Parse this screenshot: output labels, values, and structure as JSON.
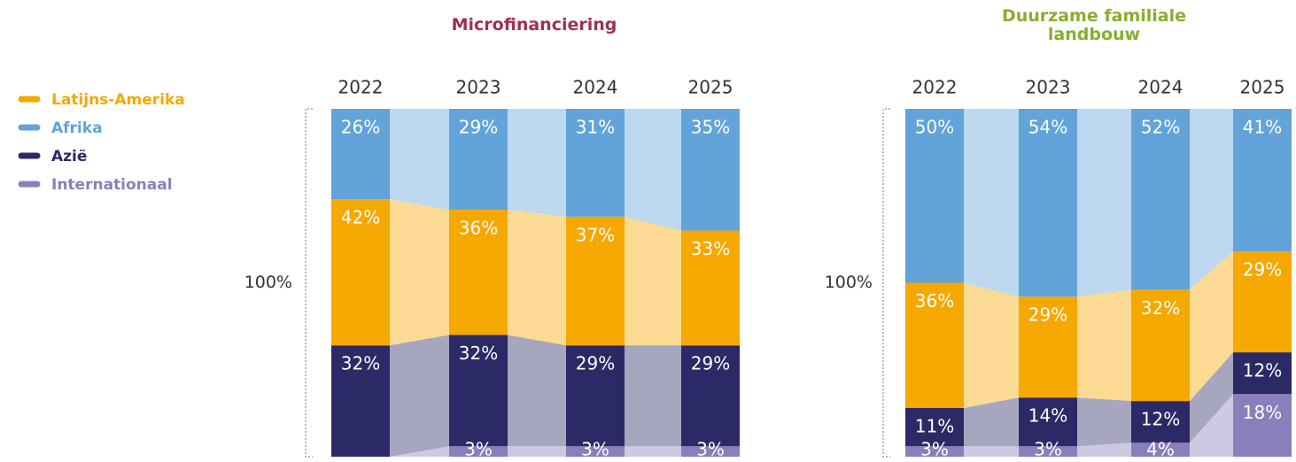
{
  "chart_data": [
    {
      "type": "stacked-bar",
      "title": "Microfinanciering",
      "title_color": "#a0304f",
      "axis_label": "100%",
      "categories": [
        "2022",
        "2023",
        "2024",
        "2025"
      ],
      "series": [
        {
          "name": "Latijns-Amerika",
          "color": "#f5a800",
          "values": [
            42,
            36,
            37,
            33
          ],
          "value_labels": [
            "42%",
            "36%",
            "37%",
            "33%"
          ]
        },
        {
          "name": "Afrika",
          "color": "#62a3d9",
          "values": [
            26,
            29,
            31,
            35
          ],
          "value_labels": [
            "26%",
            "29%",
            "31%",
            "35%"
          ]
        },
        {
          "name": "Azië",
          "color": "#2b2a66",
          "values": [
            32,
            32,
            29,
            29
          ],
          "value_labels": [
            "32%",
            "32%",
            "29%",
            "29%"
          ]
        },
        {
          "name": "Internationaal",
          "color": "#8b7fbb",
          "values": [
            0,
            3,
            3,
            3
          ],
          "value_labels": [
            null,
            "3%",
            "3%",
            "3%"
          ]
        }
      ],
      "ylim": [
        0,
        100
      ]
    },
    {
      "type": "stacked-bar",
      "title": "Duurzame familiale landbouw",
      "title_color": "#8aad2e",
      "axis_label": "100%",
      "categories": [
        "2022",
        "2023",
        "2024",
        "2025"
      ],
      "series": [
        {
          "name": "Latijns-Amerika",
          "color": "#f5a800",
          "values": [
            36,
            29,
            32,
            29
          ],
          "value_labels": [
            "36%",
            "29%",
            "32%",
            "29%"
          ]
        },
        {
          "name": "Afrika",
          "color": "#62a3d9",
          "values": [
            50,
            54,
            52,
            41
          ],
          "value_labels": [
            "50%",
            "54%",
            "52%",
            "41%"
          ]
        },
        {
          "name": "Azië",
          "color": "#2b2a66",
          "values": [
            11,
            14,
            12,
            12
          ],
          "value_labels": [
            "11%",
            "14%",
            "12%",
            "12%"
          ]
        },
        {
          "name": "Internationaal",
          "color": "#8b7fbb",
          "values": [
            3,
            3,
            4,
            18
          ],
          "value_labels": [
            "3%",
            "3%",
            "4%",
            "18%"
          ]
        }
      ],
      "ylim": [
        0,
        100
      ]
    }
  ]
}
